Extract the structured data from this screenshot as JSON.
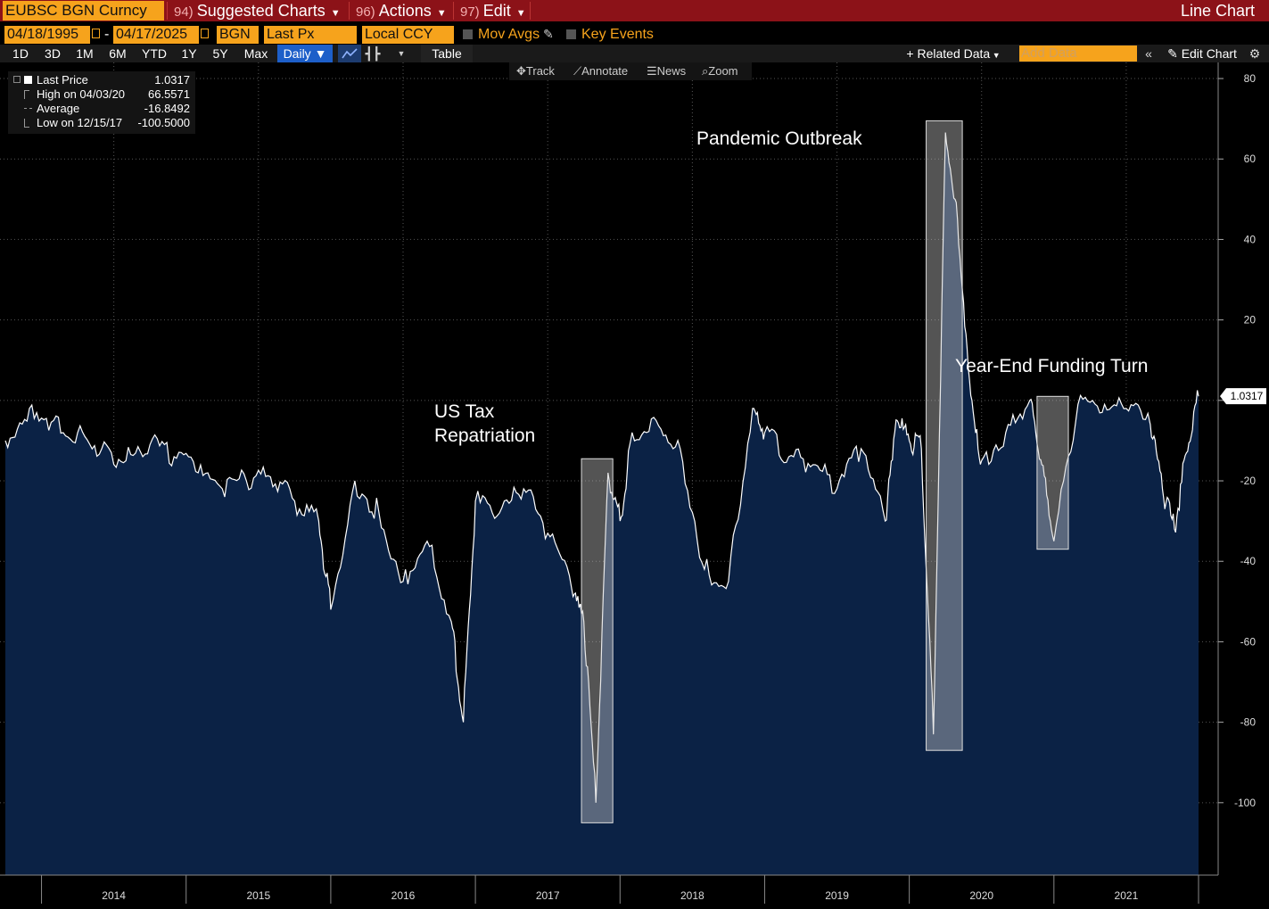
{
  "header": {
    "ticker": "EUBSC BGN Curncy",
    "menus": [
      {
        "num": "94)",
        "label": "Suggested Charts"
      },
      {
        "num": "96)",
        "label": "Actions"
      },
      {
        "num": "97)",
        "label": "Edit"
      }
    ],
    "chart_type": "Line Chart"
  },
  "settings": {
    "start_date": "04/18/1995",
    "end_date": "04/17/2025",
    "source": "BGN",
    "field": "Last Px",
    "currency": "Local CCY",
    "mov_avgs": "Mov Avgs",
    "key_events": "Key Events"
  },
  "toolbar": {
    "periods": [
      "1D",
      "3D",
      "1M",
      "6M",
      "YTD",
      "1Y",
      "5Y",
      "Max"
    ],
    "frequency": "Daily",
    "table": "Table",
    "related_data": "Related Data",
    "add_data_placeholder": "Add Data",
    "edit_chart": "Edit Chart"
  },
  "tools": {
    "track": "Track",
    "annotate": "Annotate",
    "news": "News",
    "zoom": "Zoom"
  },
  "legend": {
    "last_label": "Last Price",
    "last_value": "1.0317",
    "high_label": "High on 04/03/20",
    "high_value": "66.5571",
    "avg_label": "Average",
    "avg_value": "-16.8492",
    "low_label": "Low on 12/15/17",
    "low_value": "-100.5000"
  },
  "colors": {
    "header_bg": "#8c1218",
    "field_bg": "#f6a31c",
    "area_fill": "#0b2245",
    "line": "#ffffff",
    "active": "#1d5fc9"
  },
  "chart_data": {
    "type": "area",
    "series": [
      {
        "name": "Last Price",
        "x": [
          "2013-10",
          "2013-12",
          "2014-02",
          "2014-04",
          "2014-06",
          "2014-08",
          "2014-10",
          "2014-12",
          "2015-02",
          "2015-04",
          "2015-06",
          "2015-08",
          "2015-10",
          "2015-12",
          "2016-01",
          "2016-03",
          "2016-05",
          "2016-07",
          "2016-09",
          "2016-11",
          "2016-12",
          "2017-01",
          "2017-03",
          "2017-05",
          "2017-07",
          "2017-09",
          "2017-10",
          "2017-11",
          "2017-12",
          "2018-01",
          "2018-02",
          "2018-04",
          "2018-06",
          "2018-08",
          "2018-10",
          "2018-12",
          "2019-01",
          "2019-03",
          "2019-05",
          "2019-07",
          "2019-09",
          "2019-11",
          "2019-12",
          "2020-01",
          "2020-02",
          "2020-03",
          "2020-04",
          "2020-05",
          "2020-06",
          "2020-07",
          "2020-09",
          "2020-11",
          "2020-12",
          "2021-01",
          "2021-03",
          "2021-05",
          "2021-07",
          "2021-09",
          "2021-10",
          "2021-11",
          "2021-12",
          "2022-01"
        ],
        "values": [
          -10,
          -2,
          -5,
          -8,
          -12,
          -15,
          -11,
          -14,
          -18,
          -22,
          -20,
          -19,
          -25,
          -30,
          -52,
          -20,
          -28,
          -45,
          -35,
          -55,
          -80,
          -25,
          -28,
          -22,
          -33,
          -47,
          -55,
          -100,
          -18,
          -30,
          -8,
          -5,
          -12,
          -42,
          -45,
          -2,
          -8,
          -14,
          -16,
          -22,
          -12,
          -30,
          -5,
          -10,
          -12,
          -83,
          66.6,
          45,
          5,
          -15,
          -8,
          0,
          -16,
          -35,
          -1,
          -3,
          -2,
          -6,
          -22,
          -32,
          -13,
          1.0317
        ]
      }
    ],
    "y_ticks": [
      80,
      60,
      40,
      20,
      0,
      -20,
      -40,
      -60,
      -80,
      -100
    ],
    "y_tick_labels": [
      "80",
      "60",
      "40",
      "20",
      "",
      "-20",
      "-40",
      "-60",
      "-80",
      "-100"
    ],
    "ylim": [
      -118,
      84
    ],
    "x_labels": [
      "2014",
      "2015",
      "2016",
      "2017",
      "2018",
      "2019",
      "2020",
      "2021"
    ],
    "last_value_label": "1.0317",
    "annotations": [
      "US Tax Repatriation",
      "Pandemic Outbreak",
      "Year-End Funding Turn"
    ],
    "grid": true
  }
}
